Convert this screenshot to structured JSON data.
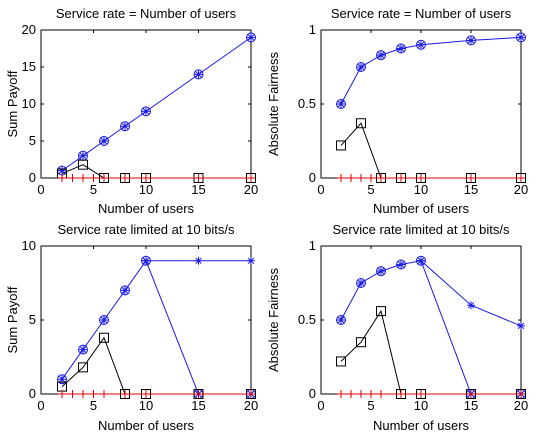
{
  "colors": {
    "blue": "#1a1ae6",
    "black": "#000000",
    "red": "#e60000"
  },
  "chart_data": [
    {
      "type": "line",
      "title": "Service rate = Number of users",
      "xlabel": "Number of users",
      "ylabel": "Sum Payoff",
      "xlim": [
        0,
        20
      ],
      "ylim": [
        0,
        20
      ],
      "xticks": [
        0,
        5,
        10,
        15,
        20
      ],
      "yticks": [
        0,
        5,
        10,
        15,
        20
      ],
      "series": [
        {
          "color": "blue",
          "markers": [
            "circle",
            "asterisk"
          ],
          "x": [
            2,
            4,
            6,
            8,
            10,
            15,
            20
          ],
          "y": [
            1,
            3,
            5,
            7,
            9,
            14,
            19
          ]
        },
        {
          "color": "black",
          "markers": [
            "square"
          ],
          "x": [
            2,
            4,
            6,
            8,
            10,
            15,
            20
          ],
          "y": [
            0.6,
            1.8,
            0,
            0,
            0,
            0,
            0
          ]
        },
        {
          "color": "red",
          "markers": [
            "plus"
          ],
          "x": [
            2,
            3,
            4,
            5,
            6,
            8,
            10,
            15,
            20
          ],
          "y": [
            0,
            0,
            0,
            0,
            0,
            0,
            0,
            0,
            0
          ]
        }
      ]
    },
    {
      "type": "line",
      "title": "Service rate = Number of users",
      "xlabel": "Number of users",
      "ylabel": "Absolute Fairness",
      "xlim": [
        0,
        20
      ],
      "ylim": [
        0,
        1
      ],
      "xticks": [
        0,
        5,
        10,
        15,
        20
      ],
      "yticks": [
        0,
        0.5,
        1
      ],
      "series": [
        {
          "color": "blue",
          "markers": [
            "circle",
            "asterisk"
          ],
          "x": [
            2,
            4,
            6,
            8,
            10,
            15,
            20
          ],
          "y": [
            0.5,
            0.75,
            0.83,
            0.875,
            0.9,
            0.93,
            0.95
          ]
        },
        {
          "color": "black",
          "markers": [
            "square"
          ],
          "x": [
            2,
            4,
            6,
            8,
            10,
            15,
            20
          ],
          "y": [
            0.22,
            0.37,
            0,
            0,
            0,
            0,
            0
          ]
        },
        {
          "color": "red",
          "markers": [
            "plus"
          ],
          "x": [
            2,
            3,
            4,
            5,
            6,
            8,
            10,
            15,
            20
          ],
          "y": [
            0,
            0,
            0,
            0,
            0,
            0,
            0,
            0,
            0
          ]
        }
      ]
    },
    {
      "type": "line",
      "title": "Service rate limited at 10 bits/s",
      "xlabel": "Number of users",
      "ylabel": "Sum Payoff",
      "xlim": [
        0,
        20
      ],
      "ylim": [
        0,
        10
      ],
      "xticks": [
        0,
        5,
        10,
        15,
        20
      ],
      "yticks": [
        0,
        5,
        10
      ],
      "series": [
        {
          "color": "blue",
          "markers": [
            "circle",
            "asterisk"
          ],
          "x": [
            2,
            4,
            6,
            8,
            10,
            15,
            20
          ],
          "y": [
            1,
            3,
            5,
            7,
            9,
            0,
            0
          ]
        },
        {
          "color": "blue",
          "markers": [
            "asterisk"
          ],
          "x": [
            10,
            15,
            20
          ],
          "y": [
            9,
            9,
            9
          ]
        },
        {
          "color": "black",
          "markers": [
            "square"
          ],
          "x": [
            2,
            4,
            6,
            8,
            10,
            15,
            20
          ],
          "y": [
            0.5,
            1.8,
            3.8,
            0,
            0,
            0,
            0
          ]
        },
        {
          "color": "red",
          "markers": [
            "plus"
          ],
          "x": [
            2,
            3,
            4,
            5,
            6,
            8,
            10,
            15,
            20
          ],
          "y": [
            0,
            0,
            0,
            0,
            0,
            0,
            0,
            0,
            0
          ]
        }
      ]
    },
    {
      "type": "line",
      "title": "Service rate limited at 10 bits/s",
      "xlabel": "Number of users",
      "ylabel": "Absolute Fairness",
      "xlim": [
        0,
        20
      ],
      "ylim": [
        0,
        1
      ],
      "xticks": [
        0,
        5,
        10,
        15,
        20
      ],
      "yticks": [
        0,
        0.5,
        1
      ],
      "series": [
        {
          "color": "blue",
          "markers": [
            "circle",
            "asterisk"
          ],
          "x": [
            2,
            4,
            6,
            8,
            10,
            15,
            20
          ],
          "y": [
            0.5,
            0.75,
            0.83,
            0.875,
            0.9,
            0,
            0
          ]
        },
        {
          "color": "blue",
          "markers": [
            "asterisk"
          ],
          "x": [
            10,
            15,
            20
          ],
          "y": [
            0.9,
            0.6,
            0.46
          ]
        },
        {
          "color": "black",
          "markers": [
            "square"
          ],
          "x": [
            2,
            4,
            6,
            8,
            10,
            15,
            20
          ],
          "y": [
            0.22,
            0.35,
            0.56,
            0,
            0,
            0,
            0
          ]
        },
        {
          "color": "red",
          "markers": [
            "plus"
          ],
          "x": [
            2,
            3,
            4,
            5,
            6,
            8,
            10,
            15,
            20
          ],
          "y": [
            0,
            0,
            0,
            0,
            0,
            0,
            0,
            0,
            0
          ]
        }
      ]
    }
  ]
}
